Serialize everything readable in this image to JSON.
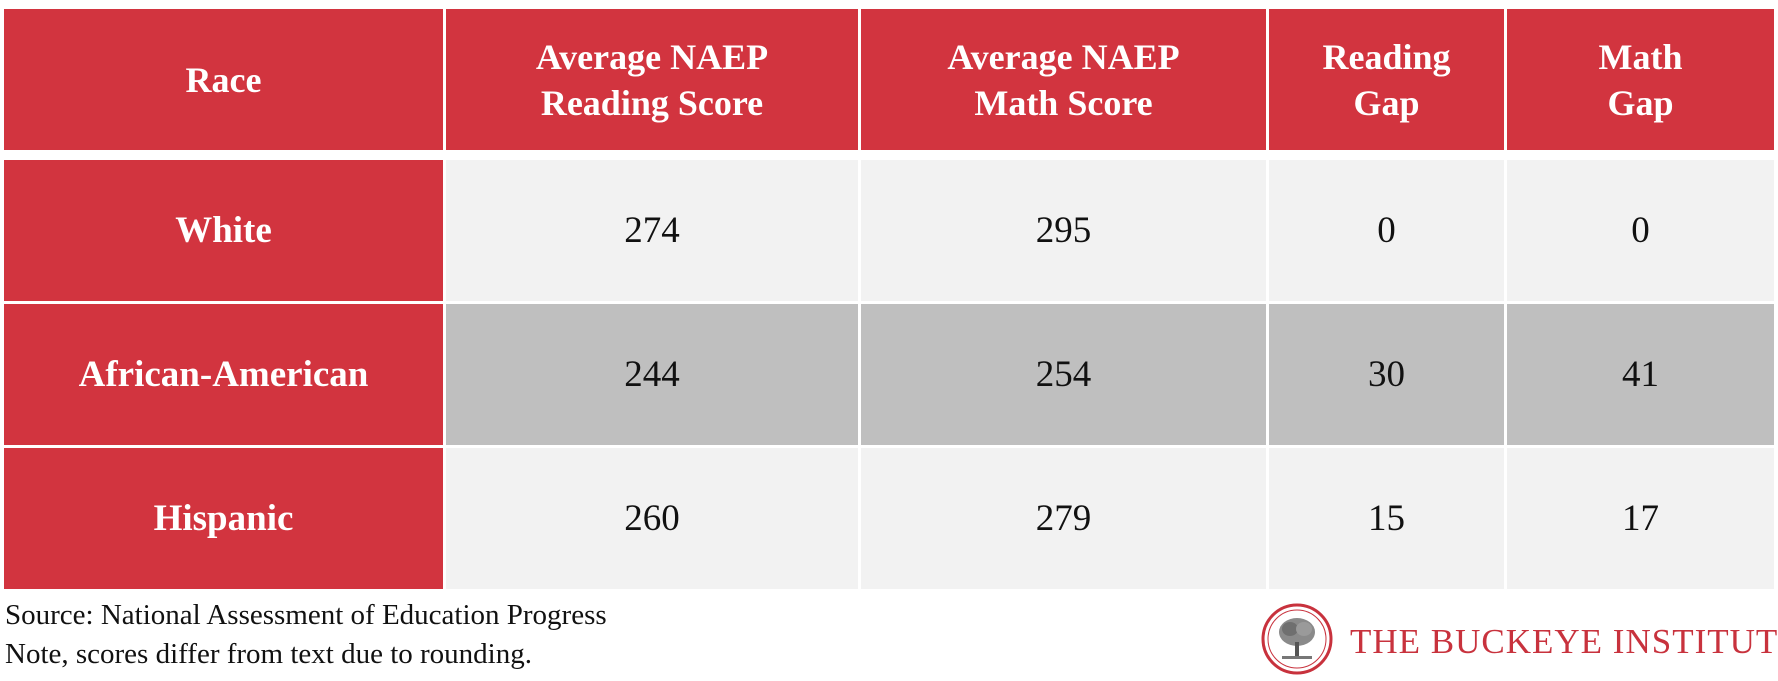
{
  "chart_data": {
    "type": "table",
    "columns": [
      "Race",
      "Average NAEP Reading Score",
      "Average NAEP Math Score",
      "Reading Gap",
      "Math Gap"
    ],
    "column_lines": [
      [
        "Race"
      ],
      [
        "Average NAEP",
        "Reading Score"
      ],
      [
        "Average NAEP",
        "Math Score"
      ],
      [
        "Reading",
        "Gap"
      ],
      [
        "Math",
        "Gap"
      ]
    ],
    "rows": [
      {
        "race": "White",
        "reading": "274",
        "math": "295",
        "reading_gap": "0",
        "math_gap": "0"
      },
      {
        "race": "African-American",
        "reading": "244",
        "math": "254",
        "reading_gap": "30",
        "math_gap": "41"
      },
      {
        "race": "Hispanic",
        "reading": "260",
        "math": "279",
        "reading_gap": "15",
        "math_gap": "17"
      }
    ]
  },
  "footer": {
    "source": "Source: National Assessment of Education Progress",
    "note": "Note, scores differ from text due to rounding.",
    "brand": "THE BUCKEYE INSTITUTE"
  },
  "colors": {
    "header_red": "#d2343f",
    "row_light": "#f2f2f2",
    "row_dark": "#bfbfbf",
    "brand_red": "#c8323d"
  },
  "icons": {
    "logo": "tree-seal-icon"
  }
}
